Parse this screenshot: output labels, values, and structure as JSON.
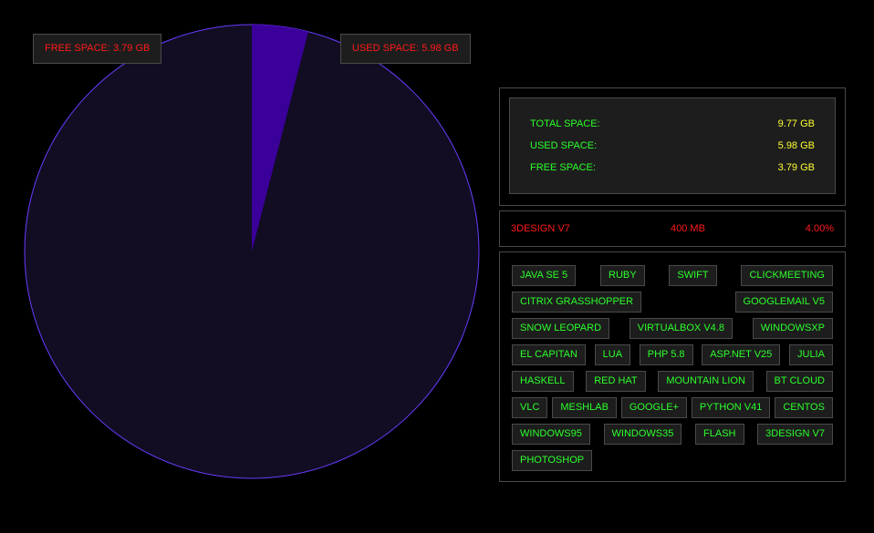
{
  "pie": {
    "free_label": "FREE SPACE: 3.79 GB",
    "used_label": "USED SPACE: 5.98 GB",
    "highlight_fraction": 0.04,
    "colors": {
      "base": "#120d23",
      "highlight": "#3a0099",
      "stroke": "#6a3cff"
    }
  },
  "summary": {
    "rows": [
      {
        "label": "TOTAL SPACE:",
        "value": "9.77 GB"
      },
      {
        "label": "USED SPACE:",
        "value": "5.98 GB"
      },
      {
        "label": "FREE SPACE:",
        "value": "3.79 GB"
      }
    ]
  },
  "selected": {
    "name": "3DESIGN V7",
    "size": "400 MB",
    "percent": "4.00%"
  },
  "apps": [
    [
      "JAVA SE 5",
      "RUBY",
      "SWIFT",
      "CLICKMEETING"
    ],
    [
      "CITRIX GRASSHOPPER",
      "GOOGLEMAIL V5"
    ],
    [
      "SNOW LEOPARD",
      "VIRTUALBOX V4.8",
      "WINDOWSXP"
    ],
    [
      "EL CAPITAN",
      "LUA",
      "PHP 5.8",
      "ASP.NET V25",
      "JULIA"
    ],
    [
      "HASKELL",
      "RED HAT",
      "MOUNTAIN LION",
      "BT CLOUD"
    ],
    [
      "VLC",
      "MESHLAB",
      "GOOGLE+",
      "PYTHON V41",
      "CENTOS"
    ],
    [
      "WINDOWS95",
      "WINDOWS35",
      "FLASH",
      "3DESIGN V7"
    ],
    [
      "PHOTOSHOP"
    ]
  ]
}
